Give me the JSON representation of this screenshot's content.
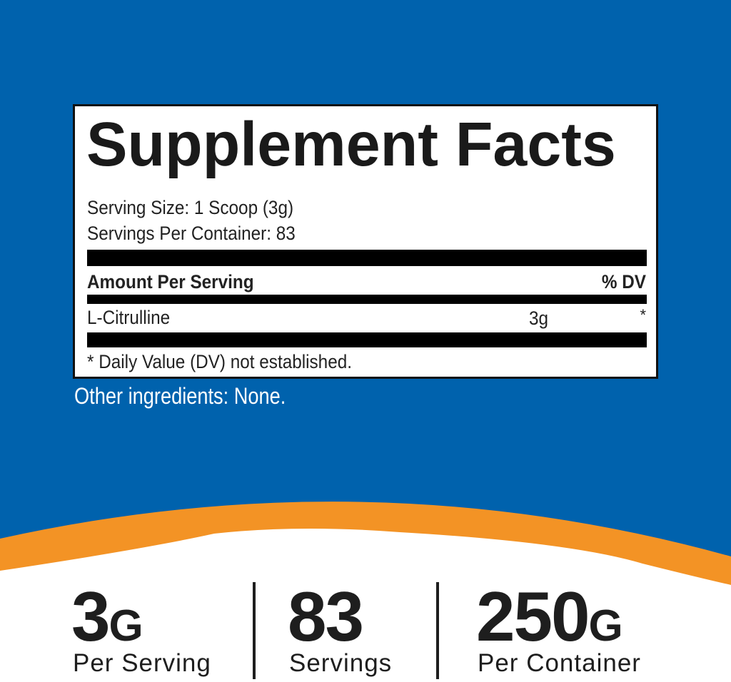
{
  "colors": {
    "background_blue": "#0062ad",
    "accent_orange": "#f39325"
  },
  "label": {
    "title": "Supplement Facts",
    "serving_size": "Serving Size: 1 Scoop (3g)",
    "servings_per_container": "Servings Per Container: 83",
    "amount_header": "Amount Per Serving",
    "dv_header": "% DV",
    "ingredients": [
      {
        "name": "L-Citrulline",
        "amount": "3g",
        "dv": "*"
      }
    ],
    "footnote": "* Daily Value (DV) not established."
  },
  "other_ingredients": "Other ingredients: None.",
  "stats": [
    {
      "value": "3",
      "unit": "G",
      "label": "Per Serving"
    },
    {
      "value": "83",
      "unit": "",
      "label": "Servings"
    },
    {
      "value": "250",
      "unit": "G",
      "label": "Per Container"
    }
  ]
}
